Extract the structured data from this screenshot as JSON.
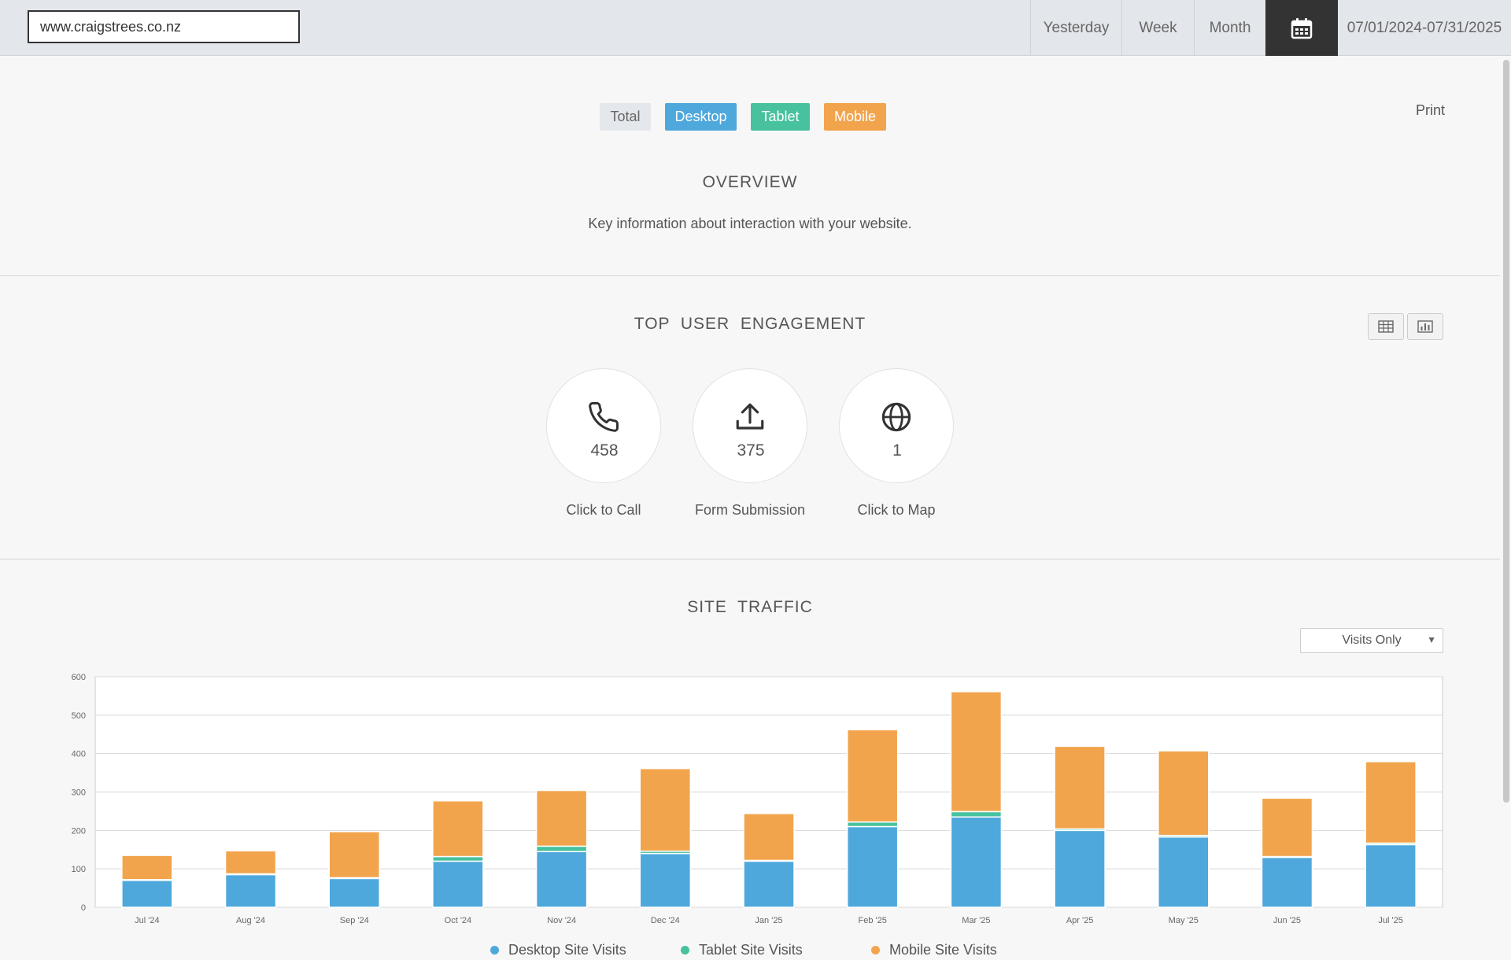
{
  "header": {
    "site_url": "www.craigstrees.co.nz",
    "ranges": [
      "Yesterday",
      "Week",
      "Month"
    ],
    "calendar_icon": "calendar-icon",
    "date_range": "07/01/2024-07/31/2025"
  },
  "filters": {
    "total": "Total",
    "desktop": "Desktop",
    "tablet": "Tablet",
    "mobile": "Mobile",
    "print": "Print"
  },
  "colors": {
    "desktop": "#4ea8dc",
    "tablet": "#47c19e",
    "mobile": "#f2a44c"
  },
  "overview": {
    "title": "OVERVIEW",
    "description": "Key information about interaction with your website."
  },
  "engagement": {
    "title": "TOP  USER  ENGAGEMENT",
    "items": [
      {
        "icon": "phone-icon",
        "value": "458",
        "label": "Click to Call"
      },
      {
        "icon": "upload-icon",
        "value": "375",
        "label": "Form Submission"
      },
      {
        "icon": "globe-icon",
        "value": "1",
        "label": "Click to Map"
      }
    ],
    "table_view_icon": "table-icon",
    "chart_view_icon": "bar-chart-icon"
  },
  "traffic": {
    "title": "SITE  TRAFFIC",
    "select_value": "Visits Only"
  },
  "chart_data": {
    "type": "bar",
    "stacked": true,
    "categories": [
      "Jul '24",
      "Aug '24",
      "Sep '24",
      "Oct '24",
      "Nov '24",
      "Dec '24",
      "Jan '25",
      "Feb '25",
      "Mar '25",
      "Apr '25",
      "May '25",
      "Jun '25",
      "Jul '25"
    ],
    "series": [
      {
        "name": "Desktop Site Visits",
        "color": "#4ea8dc",
        "values": [
          70,
          85,
          75,
          120,
          145,
          140,
          120,
          210,
          235,
          200,
          183,
          130,
          163
        ]
      },
      {
        "name": "Tablet Site Visits",
        "color": "#47c19e",
        "values": [
          2,
          2,
          2,
          12,
          14,
          6,
          2,
          12,
          14,
          4,
          4,
          2,
          4
        ]
      },
      {
        "name": "Mobile Site Visits",
        "color": "#f2a44c",
        "values": [
          63,
          60,
          120,
          145,
          145,
          215,
          122,
          240,
          312,
          215,
          220,
          152,
          212
        ]
      }
    ],
    "ylim": [
      0,
      600
    ],
    "yticks": [
      "0",
      "100",
      "200",
      "300",
      "400",
      "500",
      "600"
    ],
    "grid": true,
    "legend_position": "bottom"
  }
}
